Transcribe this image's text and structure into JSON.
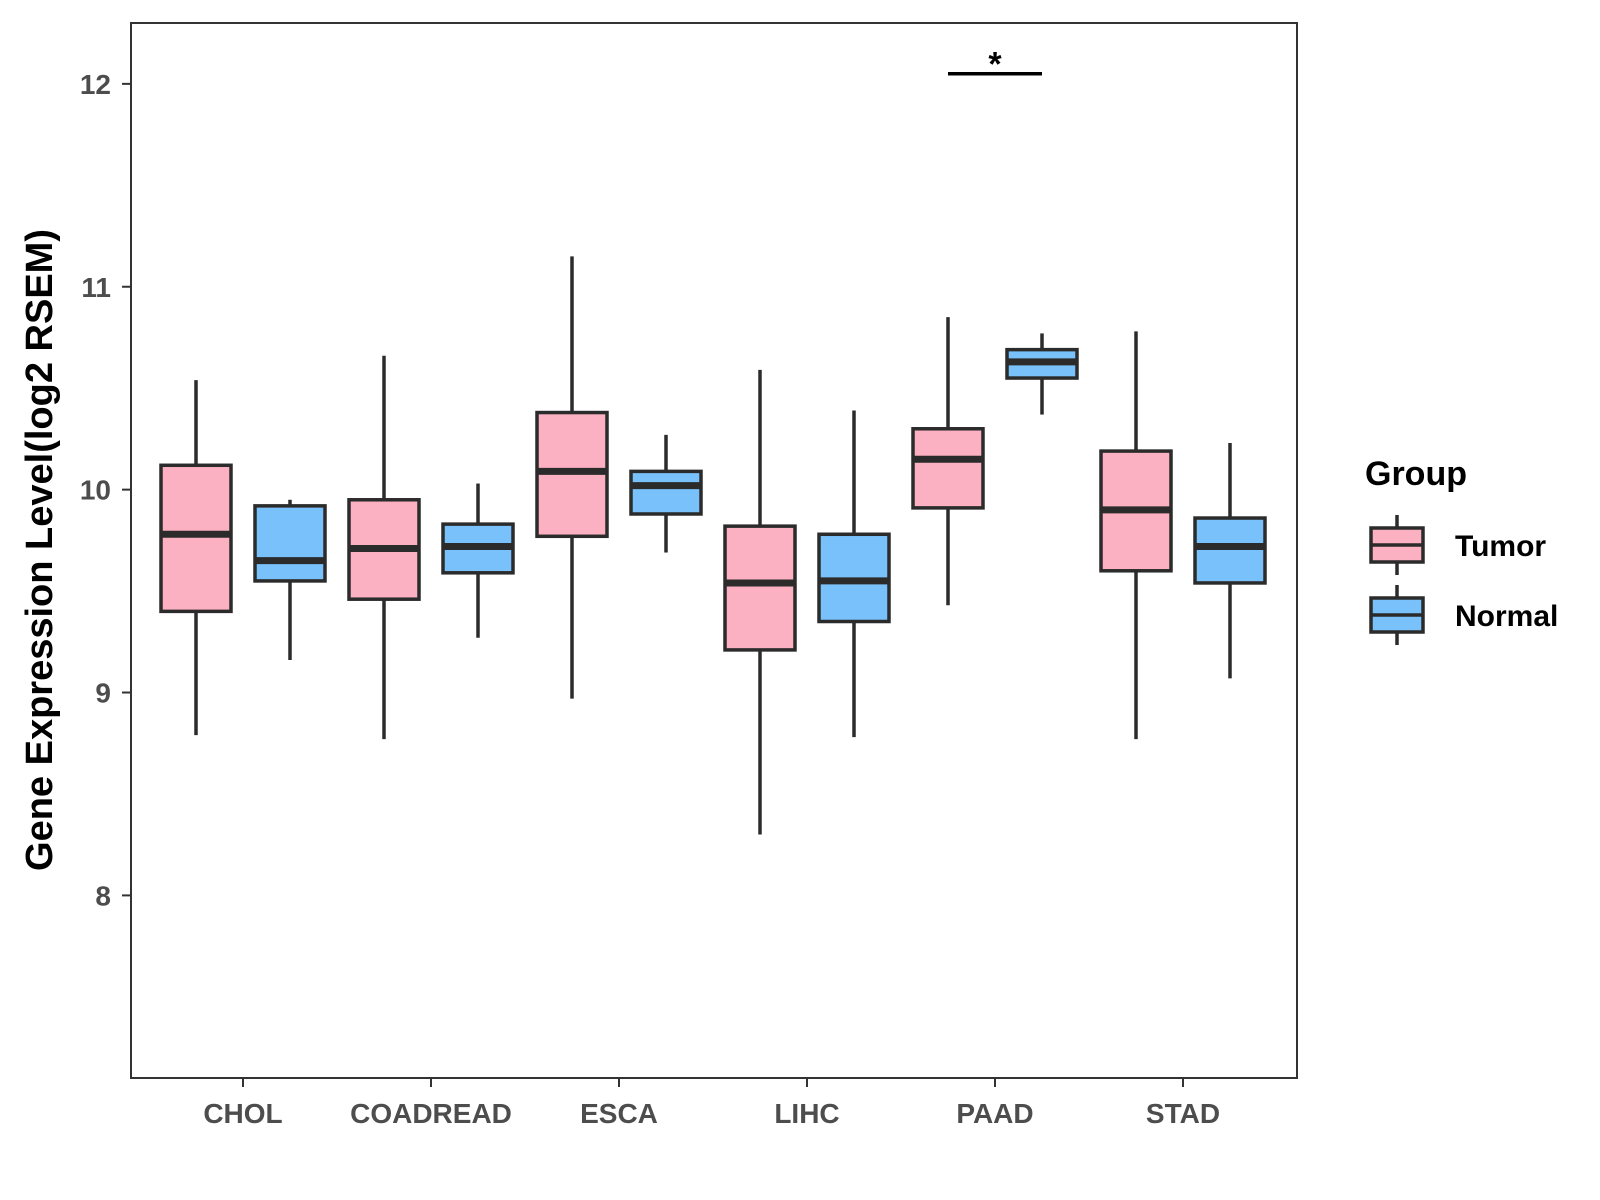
{
  "chart_data": {
    "type": "boxplot",
    "title": "",
    "xlabel": "",
    "ylabel": "Gene Expression Level(log2 RSEM)",
    "ylim": [
      7.1,
      12.3
    ],
    "yticks": [
      8,
      9,
      10,
      11,
      12
    ],
    "categories": [
      "CHOL",
      "COADREAD",
      "ESCA",
      "LIHC",
      "PAAD",
      "STAD"
    ],
    "legend": {
      "title": "Group",
      "position": "right",
      "entries": [
        {
          "name": "Tumor",
          "color": "#fbb1c1"
        },
        {
          "name": "Normal",
          "color": "#79c1fa"
        }
      ]
    },
    "series": [
      {
        "name": "Tumor",
        "color": "#fbb1c1",
        "boxes": [
          {
            "category": "CHOL",
            "whisker_low": 8.79,
            "q1": 9.4,
            "median": 9.78,
            "q3": 10.12,
            "whisker_high": 10.54
          },
          {
            "category": "COADREAD",
            "whisker_low": 8.77,
            "q1": 9.46,
            "median": 9.71,
            "q3": 9.95,
            "whisker_high": 10.66
          },
          {
            "category": "ESCA",
            "whisker_low": 8.97,
            "q1": 9.77,
            "median": 10.09,
            "q3": 10.38,
            "whisker_high": 11.15
          },
          {
            "category": "LIHC",
            "whisker_low": 8.3,
            "q1": 9.21,
            "median": 9.54,
            "q3": 9.82,
            "whisker_high": 10.59
          },
          {
            "category": "PAAD",
            "whisker_low": 9.43,
            "q1": 9.91,
            "median": 10.15,
            "q3": 10.3,
            "whisker_high": 10.85
          },
          {
            "category": "STAD",
            "whisker_low": 8.77,
            "q1": 9.6,
            "median": 9.9,
            "q3": 10.19,
            "whisker_high": 10.78
          }
        ]
      },
      {
        "name": "Normal",
        "color": "#79c1fa",
        "boxes": [
          {
            "category": "CHOL",
            "whisker_low": 9.16,
            "q1": 9.55,
            "median": 9.65,
            "q3": 9.92,
            "whisker_high": 9.95
          },
          {
            "category": "COADREAD",
            "whisker_low": 9.27,
            "q1": 9.59,
            "median": 9.72,
            "q3": 9.83,
            "whisker_high": 10.03
          },
          {
            "category": "ESCA",
            "whisker_low": 9.69,
            "q1": 9.88,
            "median": 10.02,
            "q3": 10.09,
            "whisker_high": 10.27
          },
          {
            "category": "LIHC",
            "whisker_low": 8.78,
            "q1": 9.35,
            "median": 9.55,
            "q3": 9.78,
            "whisker_high": 10.39
          },
          {
            "category": "PAAD",
            "whisker_low": 10.37,
            "q1": 10.55,
            "median": 10.63,
            "q3": 10.69,
            "whisker_high": 10.77
          },
          {
            "category": "STAD",
            "whisker_low": 9.07,
            "q1": 9.54,
            "median": 9.72,
            "q3": 9.86,
            "whisker_high": 10.23
          }
        ]
      }
    ],
    "annotations": [
      {
        "category": "PAAD",
        "text": "*",
        "y": 12.05
      }
    ]
  }
}
